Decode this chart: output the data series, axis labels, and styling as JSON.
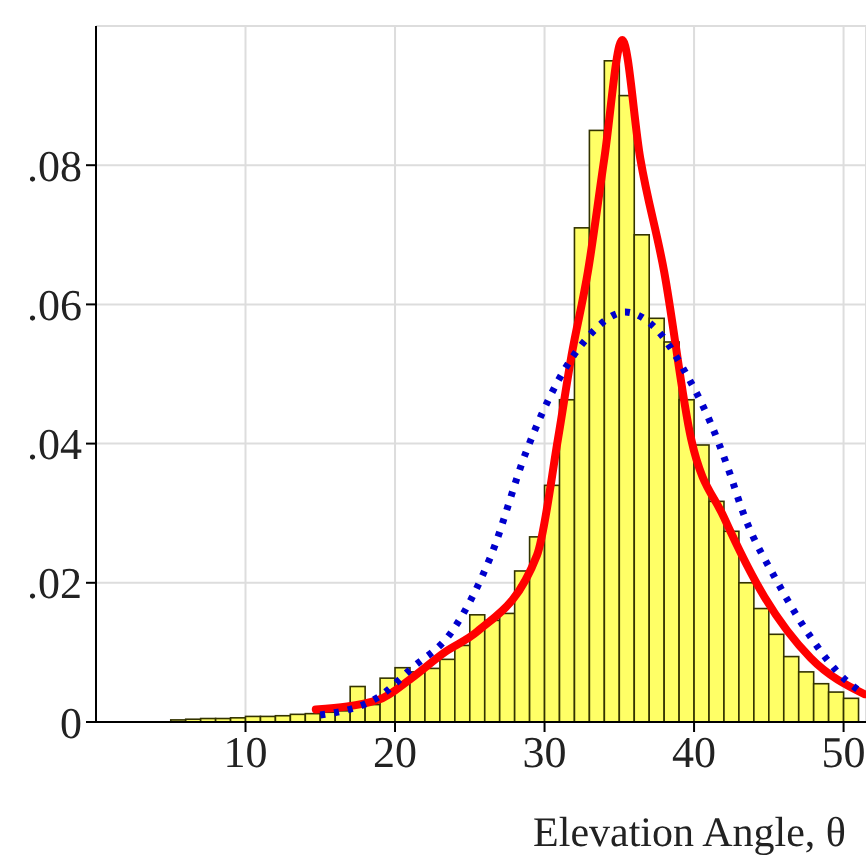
{
  "chart_data": {
    "type": "histogram",
    "xlabel": "Elevation Angle, θ",
    "grid": true,
    "legend": false,
    "xlim": [
      0,
      51.5
    ],
    "xticks": [
      10,
      20,
      30,
      40,
      50
    ],
    "ylim": [
      0,
      0.1
    ],
    "yticks": [
      0,
      {
        "value": 0.02,
        "label": ".02"
      },
      {
        "value": 0.04,
        "label": ".04"
      },
      {
        "value": 0.06,
        "label": ".06"
      },
      {
        "value": 0.08,
        "label": ".08"
      }
    ],
    "series": [
      {
        "color": "#ffff66",
        "bins": [
          0,
          1,
          2,
          3,
          4,
          5,
          6,
          7,
          8,
          9,
          10,
          11,
          12,
          13,
          14,
          15,
          16,
          17,
          18,
          19,
          20,
          21,
          22,
          23,
          24,
          25,
          26,
          27,
          28,
          29,
          30,
          31,
          32,
          33,
          34,
          35,
          36,
          37,
          38,
          39,
          40,
          41,
          42,
          43,
          44,
          45,
          46,
          47,
          48,
          49,
          50,
          51
        ],
        "values": [
          0,
          null,
          null,
          null,
          null,
          0.0003,
          0.0004,
          0.0005,
          0.0005,
          0.0006,
          0.0008,
          0.0008,
          0.0009,
          0.0011,
          0.0012,
          0.0014,
          0.0016,
          0.0051,
          0.0025,
          0.0063,
          0.0078,
          0.0072,
          0.0077,
          0.009,
          0.011,
          0.0154,
          0.0146,
          0.0156,
          0.0217,
          0.0266,
          0.034,
          0.0463,
          0.071,
          0.085,
          0.095,
          0.09,
          0.07,
          0.058,
          0.0546,
          0.0463,
          0.0398,
          0.0317,
          0.0274,
          0.02,
          0.0163,
          0.0126,
          0.0094,
          0.0072,
          0.0055,
          0.0043,
          0.0034
        ]
      },
      {
        "type": "line",
        "color": "#ff0000",
        "line_style": "solid",
        "x": [
          14.7,
          18.9,
          21.1,
          23.3,
          25.5,
          29.5,
          30.9,
          31.8,
          32.9,
          34,
          35.2,
          36.4,
          38,
          39.8,
          42,
          44.7,
          47.8,
          51.4
        ],
        "values": [
          0.0018,
          0.0032,
          0.0063,
          0.01,
          0.013,
          0.024,
          0.0407,
          0.0526,
          0.0647,
          0.081,
          0.098,
          0.081,
          0.0647,
          0.0407,
          0.0294,
          0.018,
          0.0092,
          0.004
        ]
      },
      {
        "type": "line",
        "color": "#0000cc",
        "line_style": "dotted",
        "x": [
          15,
          18.9,
          21.1,
          23.8,
          26.4,
          28.8,
          30.9,
          32.9,
          35.4,
          37.5,
          39.4,
          41.1,
          42.2,
          43.4,
          45.5,
          47.8,
          50,
          51.4
        ],
        "values": [
          0.001,
          0.0036,
          0.0077,
          0.013,
          0.0238,
          0.039,
          0.049,
          0.0553,
          0.0589,
          0.0564,
          0.0503,
          0.043,
          0.0369,
          0.0294,
          0.0204,
          0.0122,
          0.0063,
          0.004
        ]
      }
    ]
  }
}
